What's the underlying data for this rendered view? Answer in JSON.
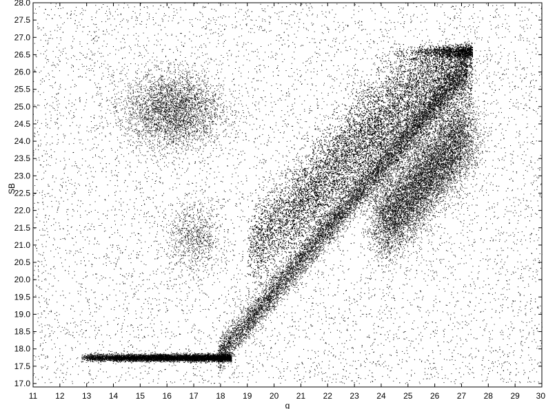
{
  "chart_data": {
    "type": "scatter",
    "title": "",
    "xlabel": "g",
    "ylabel": "SB",
    "xlim": [
      11,
      30
    ],
    "ylim": [
      16.9,
      28.0
    ],
    "xticks": [
      11,
      12,
      13,
      14,
      15,
      16,
      17,
      18,
      19,
      20,
      21,
      22,
      23,
      24,
      25,
      26,
      27,
      28,
      29,
      30
    ],
    "yticks": [
      "17.0",
      "17.5",
      "18.0",
      "18.5",
      "19.0",
      "19.5",
      "20.0",
      "20.5",
      "21.0",
      "21.5",
      "22.0",
      "22.5",
      "23.0",
      "23.5",
      "24.0",
      "24.5",
      "25.0",
      "25.5",
      "26.0",
      "26.5",
      "27.0",
      "27.5",
      "28.0"
    ],
    "grid": false,
    "legend": "none",
    "marker_color": "#000000",
    "series": [
      {
        "regions": [
          {
            "desc": "bright horizontal sequence",
            "x": [
              12.7,
              18.3
            ],
            "y": [
              17.6,
              17.9
            ]
          },
          {
            "desc": "diagonal stellar sequence",
            "x": [
              17.8,
              27.2
            ],
            "y": [
              17.8,
              26.5
            ]
          },
          {
            "desc": "broad upper galaxy locus",
            "x": [
              19.0,
              27.8
            ],
            "y": [
              19.5,
              26.8
            ]
          },
          {
            "desc": "lower clump",
            "x": [
              23.5,
              27.5
            ],
            "y": [
              20.5,
              24.8
            ]
          },
          {
            "desc": "diffuse upper-left cloud",
            "x": [
              14.5,
              18.0
            ],
            "y": [
              23.5,
              25.8
            ]
          },
          {
            "desc": "faint background scatter",
            "x": [
              11,
              30
            ],
            "y": [
              17.0,
              28.0
            ]
          }
        ]
      }
    ]
  }
}
